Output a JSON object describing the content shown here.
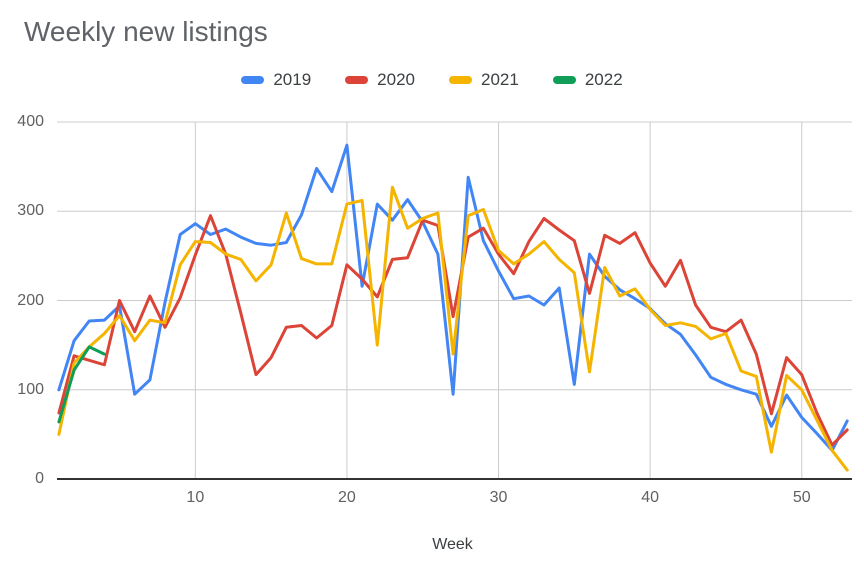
{
  "title": "Weekly new listings",
  "xaxis_title": "Week",
  "chart_data": {
    "type": "line",
    "title": "Weekly new listings",
    "xlabel": "Week",
    "ylabel": "",
    "ylim": [
      0,
      400
    ],
    "y_ticks": [
      0,
      100,
      200,
      300,
      400
    ],
    "x_ticks": [
      10,
      20,
      30,
      40,
      50
    ],
    "x_range_weeks": [
      1,
      53
    ],
    "grid": true,
    "legend_position": "top",
    "axis_text_color": "#616161",
    "grid_color": "#cccccc",
    "axis_line_color": "#333333",
    "series": [
      {
        "name": "2019",
        "color": "#4285F4",
        "values": [
          100,
          155,
          177,
          178,
          194,
          95,
          111,
          198,
          274,
          286,
          274,
          280,
          271,
          264,
          262,
          265,
          296,
          348,
          322,
          374,
          216,
          308,
          290,
          313,
          288,
          252,
          95,
          338,
          267,
          233,
          202,
          205,
          195,
          214,
          106,
          252,
          227,
          212,
          202,
          191,
          174,
          162,
          139,
          114,
          106,
          100,
          95,
          59,
          94,
          69,
          51,
          32,
          65
        ]
      },
      {
        "name": "2020",
        "color": "#DB4437",
        "values": [
          74,
          138,
          133,
          128,
          200,
          165,
          205,
          170,
          203,
          251,
          295,
          252,
          186,
          117,
          136,
          170,
          172,
          158,
          172,
          240,
          224,
          204,
          246,
          248,
          290,
          284,
          182,
          271,
          281,
          252,
          230,
          266,
          292,
          279,
          267,
          208,
          273,
          264,
          276,
          242,
          216,
          245,
          195,
          170,
          165,
          178,
          140,
          73,
          136,
          117,
          74,
          38,
          55
        ]
      },
      {
        "name": "2021",
        "color": "#F4B400",
        "values": [
          50,
          130,
          148,
          163,
          183,
          155,
          178,
          175,
          240,
          266,
          265,
          252,
          246,
          222,
          240,
          298,
          247,
          241,
          241,
          308,
          312,
          150,
          327,
          281,
          292,
          298,
          140,
          295,
          302,
          256,
          241,
          252,
          266,
          246,
          231,
          120,
          237,
          205,
          213,
          190,
          172,
          175,
          171,
          157,
          163,
          121,
          115,
          30,
          116,
          100,
          66,
          32,
          10
        ]
      },
      {
        "name": "2022",
        "color": "#0F9D58",
        "values": [
          64,
          122,
          148,
          140,
          null,
          null,
          null,
          null,
          null,
          null,
          null,
          null,
          null,
          null,
          null,
          null,
          null,
          null,
          null,
          null,
          null,
          null,
          null,
          null,
          null,
          null,
          null,
          null,
          null,
          null,
          null,
          null,
          null,
          null,
          null,
          null,
          null,
          null,
          null,
          null,
          null,
          null,
          null,
          null,
          null,
          null,
          null,
          null,
          null,
          null,
          null,
          null,
          null
        ]
      }
    ]
  }
}
